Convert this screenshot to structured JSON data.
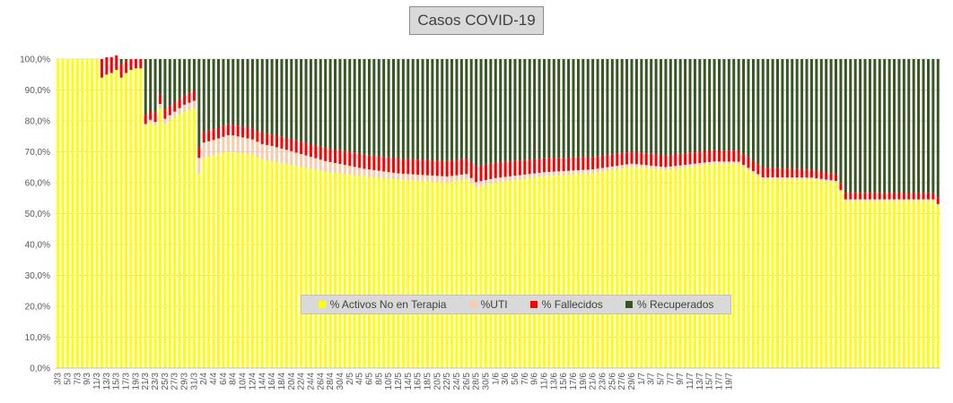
{
  "chart_data": {
    "type": "bar",
    "stacked": "percent",
    "title": "Casos  COVID-19",
    "xlabel": "",
    "ylabel": "",
    "ylim": [
      0,
      100
    ],
    "y_ticks": [
      "0,0%",
      "10,0%",
      "20,0%",
      "30,0%",
      "40,0%",
      "50,0%",
      "60,0%",
      "70,0%",
      "80,0%",
      "90,0%",
      "100,0%"
    ],
    "x_tick_labels": [
      "3/3",
      "5/3",
      "7/3",
      "9/3",
      "11/3",
      "13/3",
      "15/3",
      "17/3",
      "19/3",
      "21/3",
      "23/3",
      "25/3",
      "27/3",
      "29/3",
      "31/3",
      "2/4",
      "4/4",
      "6/4",
      "8/4",
      "10/4",
      "12/4",
      "14/4",
      "16/4",
      "18/4",
      "20/4",
      "22/4",
      "24/4",
      "26/4",
      "28/4",
      "30/4",
      "2/5",
      "4/5",
      "6/5",
      "8/5",
      "10/5",
      "12/5",
      "14/5",
      "16/5",
      "18/5",
      "20/5",
      "22/5",
      "24/5",
      "26/5",
      "28/5",
      "30/5",
      "1/6",
      "3/6",
      "5/6",
      "7/6",
      "9/6",
      "11/6",
      "13/6",
      "15/6",
      "17/6",
      "19/6",
      "21/6",
      "23/6",
      "25/6",
      "27/6",
      "29/6",
      "1/7",
      "3/7",
      "5/7",
      "7/7",
      "9/7",
      "11/7",
      "13/7",
      "15/7",
      "17/7",
      "19/7"
    ],
    "grid": true,
    "legend_position": "bottom-center",
    "series_keypoints": {
      "activos": [
        [
          0,
          100
        ],
        [
          8,
          100
        ],
        [
          9,
          94
        ],
        [
          10,
          95
        ],
        [
          11,
          95.5
        ],
        [
          12,
          96.5
        ],
        [
          13,
          94
        ],
        [
          14,
          95.5
        ],
        [
          15,
          96.5
        ],
        [
          16,
          97
        ],
        [
          17,
          97
        ],
        [
          18,
          78.5
        ],
        [
          19,
          79.5
        ],
        [
          20,
          78.5
        ],
        [
          21,
          84
        ],
        [
          22,
          79
        ],
        [
          23,
          80
        ],
        [
          24,
          81
        ],
        [
          25,
          82
        ],
        [
          26,
          83
        ],
        [
          27,
          83.5
        ],
        [
          28,
          84
        ],
        [
          29,
          63
        ],
        [
          30,
          68
        ],
        [
          35,
          70
        ],
        [
          40,
          69
        ],
        [
          42,
          67.5
        ],
        [
          47,
          66
        ],
        [
          55,
          63.5
        ],
        [
          63,
          62
        ],
        [
          70,
          61
        ],
        [
          80,
          60
        ],
        [
          84,
          61
        ],
        [
          86,
          58.5
        ],
        [
          90,
          60
        ],
        [
          95,
          61
        ],
        [
          100,
          62
        ],
        [
          110,
          63
        ],
        [
          118,
          65
        ],
        [
          125,
          64
        ],
        [
          135,
          66
        ],
        [
          140,
          66
        ],
        [
          145,
          61
        ],
        [
          155,
          61
        ],
        [
          160,
          60
        ],
        [
          162,
          54
        ],
        [
          170,
          54
        ],
        [
          180,
          54
        ],
        [
          181,
          52.5
        ]
      ],
      "uti": [
        [
          0,
          0
        ],
        [
          8,
          0
        ],
        [
          9,
          0
        ],
        [
          17,
          0
        ],
        [
          18,
          0.5
        ],
        [
          21,
          1.5
        ],
        [
          24,
          2
        ],
        [
          28,
          2.5
        ],
        [
          29,
          5
        ],
        [
          32,
          5
        ],
        [
          36,
          5.5
        ],
        [
          40,
          5
        ],
        [
          44,
          5
        ],
        [
          48,
          4.5
        ],
        [
          55,
          3.5
        ],
        [
          63,
          2.5
        ],
        [
          70,
          2
        ],
        [
          80,
          2
        ],
        [
          90,
          1.5
        ],
        [
          110,
          1.3
        ],
        [
          140,
          0.8
        ],
        [
          160,
          0.6
        ],
        [
          181,
          0.6
        ]
      ],
      "fallecidos": [
        [
          0,
          0
        ],
        [
          8,
          0
        ],
        [
          9,
          6
        ],
        [
          16,
          3
        ],
        [
          17,
          3
        ],
        [
          18,
          3
        ],
        [
          22,
          3
        ],
        [
          28,
          3.2
        ],
        [
          29,
          3.5
        ],
        [
          40,
          3.5
        ],
        [
          50,
          4
        ],
        [
          60,
          4.5
        ],
        [
          70,
          4.8
        ],
        [
          80,
          5
        ],
        [
          90,
          5
        ],
        [
          110,
          4
        ],
        [
          140,
          3.5
        ],
        [
          160,
          2.2
        ],
        [
          181,
          2
        ]
      ],
      "n_bars": 182
    },
    "series": [
      {
        "name": "% Activos No en Terapia",
        "color": "#ffff00"
      },
      {
        "name": "%UTI",
        "color": "#f8cbad"
      },
      {
        "name": "% Fallecidos",
        "color": "#ff0000"
      },
      {
        "name": "% Recuperados",
        "color": "#375623"
      }
    ]
  }
}
